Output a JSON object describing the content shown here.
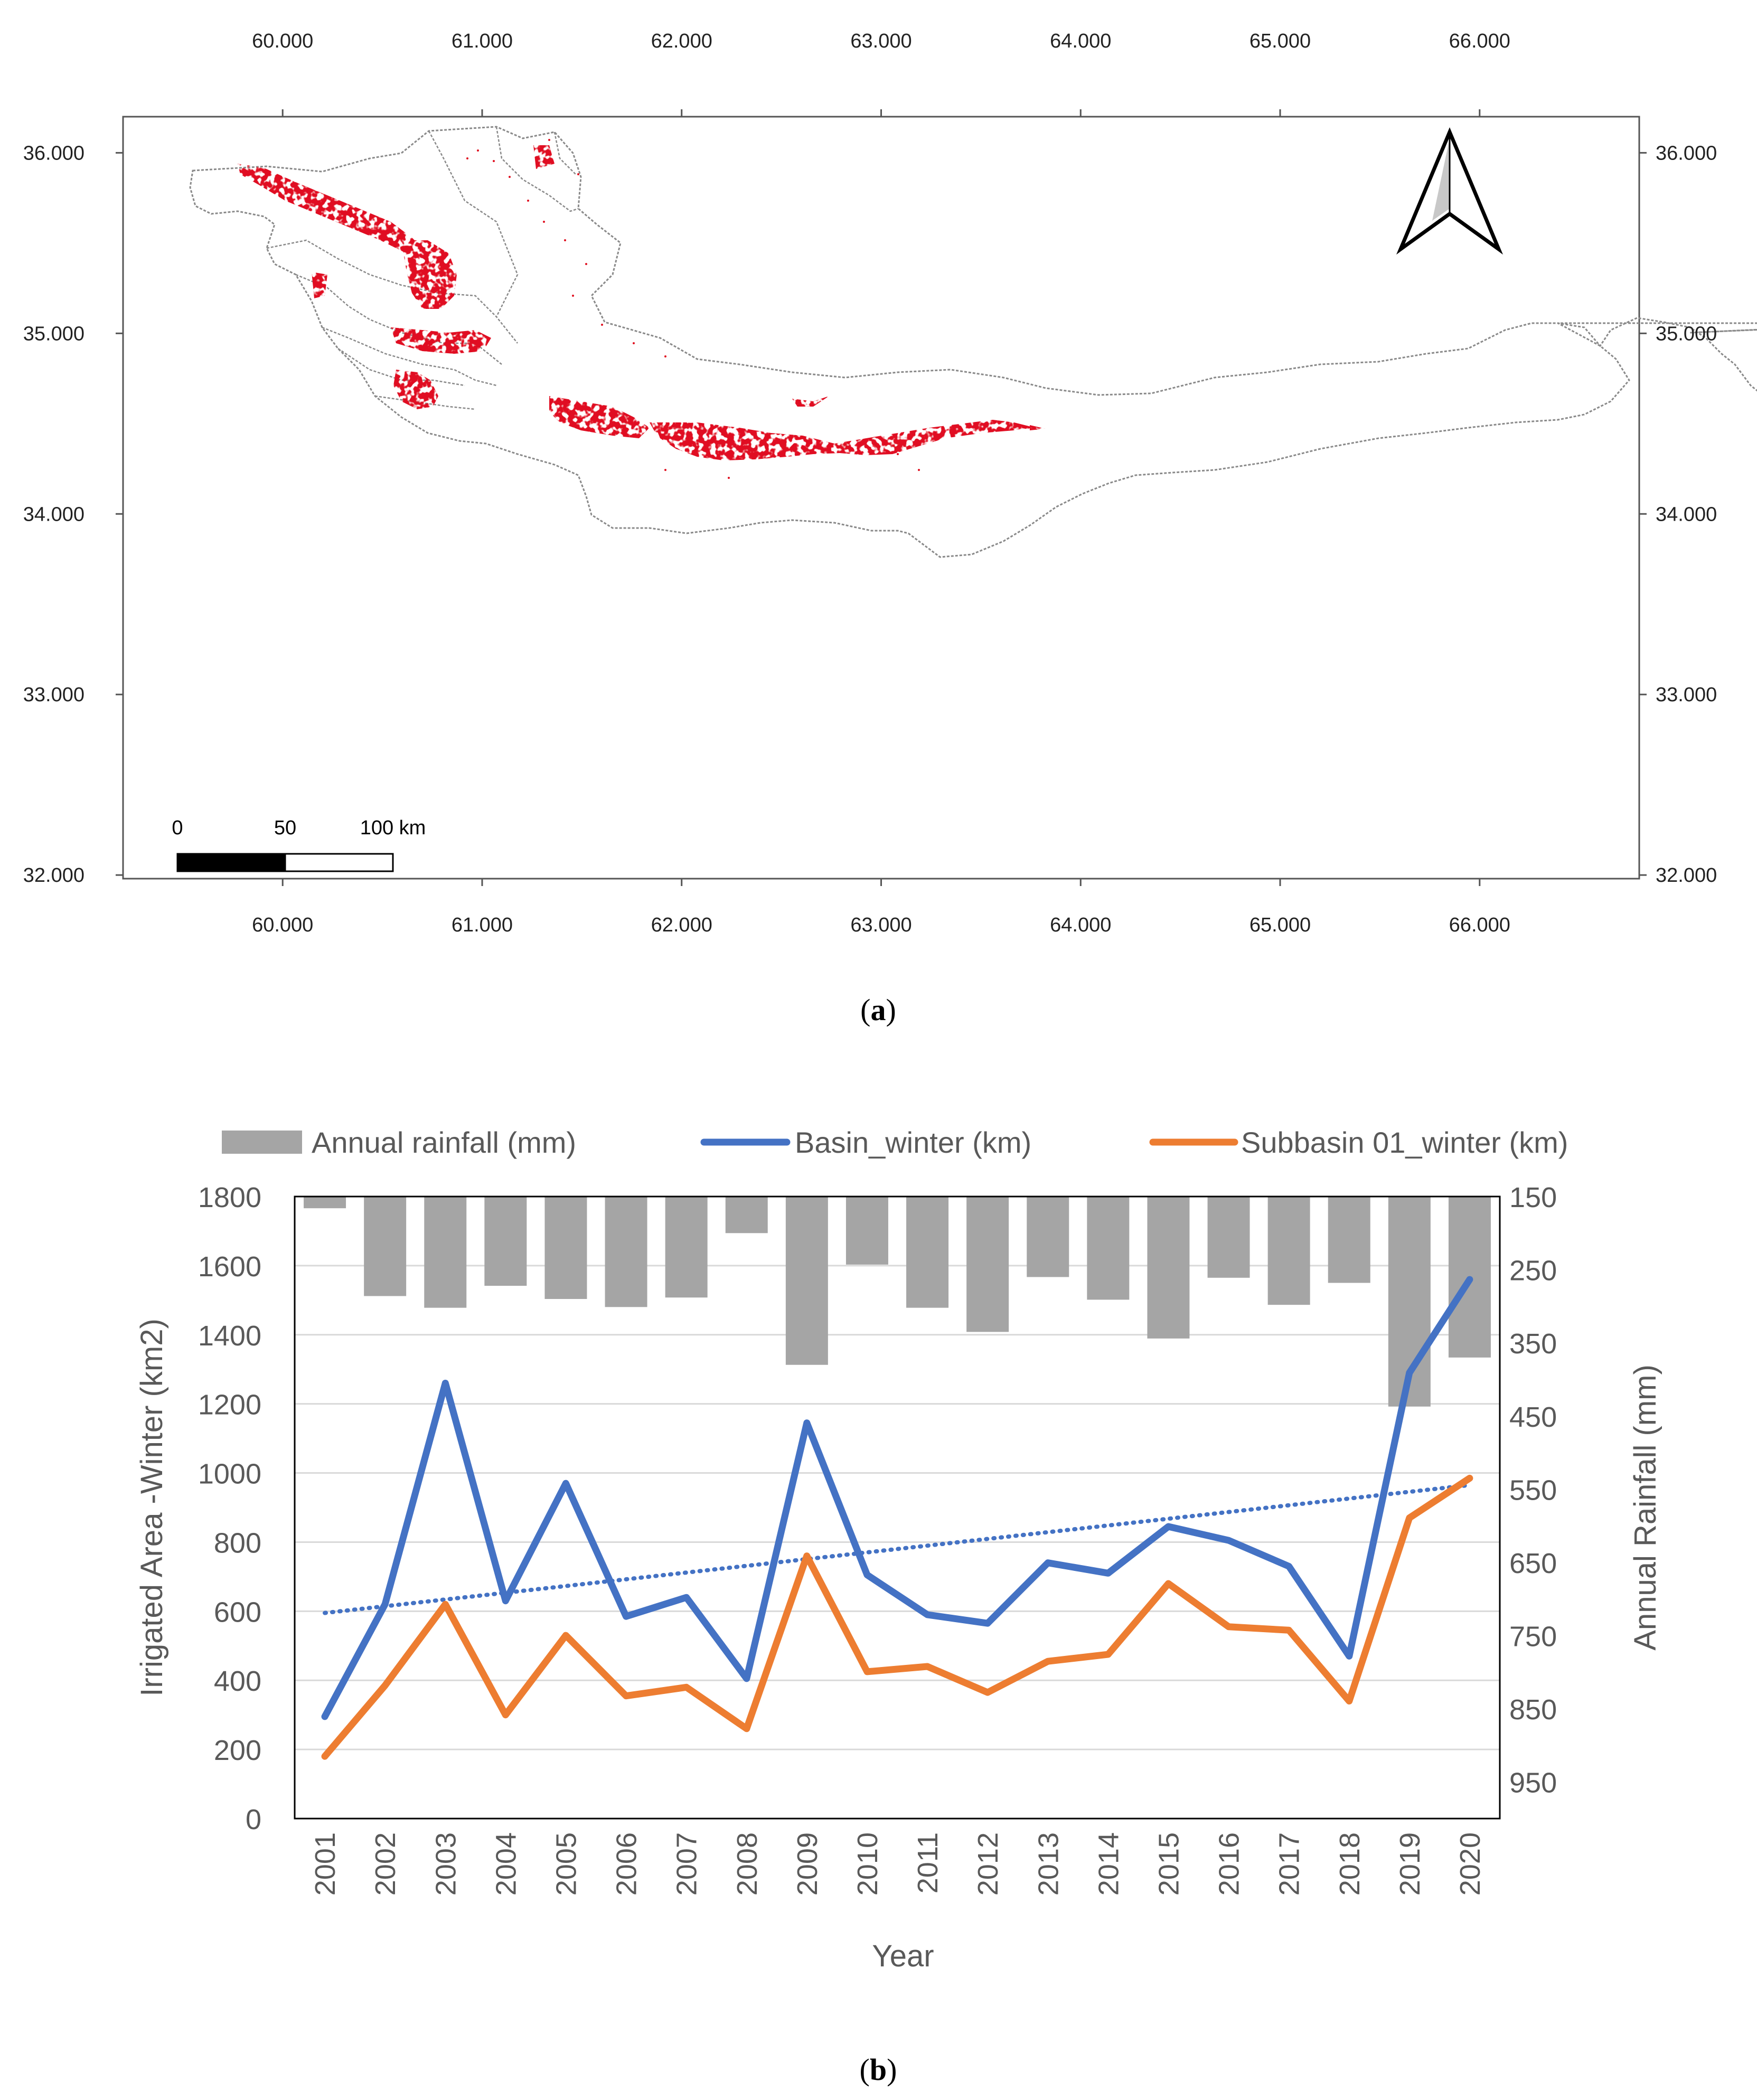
{
  "panel_a": {
    "caption_open": "(",
    "caption_letter": "a",
    "caption_close": ")",
    "x_ticks": [
      "60.000",
      "61.000",
      "62.000",
      "63.000",
      "64.000",
      "65.000",
      "66.000"
    ],
    "y_ticks": [
      "36.000",
      "35.000",
      "34.000",
      "33.000",
      "32.000"
    ],
    "scale_bar": {
      "labels": [
        "0",
        "50",
        "100 km"
      ]
    },
    "colors": {
      "irrigated": "#e01020",
      "boundary": "#8a8a8a"
    }
  },
  "panel_b": {
    "caption_open": "(",
    "caption_letter": "b",
    "caption_close": ")"
  },
  "chart_data": [
    {
      "type": "map",
      "x_ticks": [
        60,
        61,
        62,
        63,
        64,
        65,
        66
      ],
      "y_ticks": [
        36,
        35,
        34,
        33,
        32
      ],
      "xlim": [
        59.2,
        66.8
      ],
      "ylim": [
        31.98,
        36.2
      ],
      "legend": "none",
      "north_arrow": true
    },
    {
      "type": "bar+line",
      "categories": [
        "2001",
        "2002",
        "2003",
        "2004",
        "2005",
        "2006",
        "2007",
        "2008",
        "2009",
        "2010",
        "2011",
        "2012",
        "2013",
        "2014",
        "2015",
        "2016",
        "2017",
        "2018",
        "2019",
        "2020"
      ],
      "series": [
        {
          "name": "Annual rainfall (mm)",
          "type": "bar",
          "axis": "right",
          "color": "#a5a5a5",
          "values": [
            166,
            286,
            302,
            272,
            290,
            301,
            288,
            200,
            380,
            243,
            302,
            335,
            260,
            291,
            344,
            261,
            298,
            268,
            437,
            370
          ]
        },
        {
          "name": "Basin_winter (km)",
          "type": "line",
          "axis": "left",
          "color": "#4472c4",
          "values": [
            295,
            620,
            1260,
            630,
            970,
            585,
            640,
            405,
            1145,
            705,
            590,
            565,
            740,
            710,
            845,
            805,
            730,
            470,
            1290,
            1560
          ],
          "trendline": {
            "start": 595,
            "end": 965
          }
        },
        {
          "name": "Subbasin 01_winter (km)",
          "type": "line",
          "axis": "left",
          "color": "#ed7d31",
          "values": [
            180,
            385,
            620,
            300,
            530,
            355,
            380,
            260,
            760,
            425,
            440,
            365,
            455,
            475,
            680,
            555,
            545,
            340,
            870,
            985
          ]
        }
      ],
      "xlabel": "Year",
      "ylabel": "Irrigated Area -Winter (km2)",
      "y2label": "Annual Rainfall (mm)",
      "y_ticks": [
        "0",
        "200",
        "400",
        "600",
        "800",
        "1000",
        "1200",
        "1400",
        "1600",
        "1800"
      ],
      "y2_ticks": [
        "150",
        "250",
        "350",
        "450",
        "550",
        "650",
        "750",
        "850",
        "950"
      ],
      "ylim": [
        0,
        1800
      ],
      "y2lim": [
        150,
        1000
      ],
      "grid": true,
      "legend": "top"
    }
  ]
}
